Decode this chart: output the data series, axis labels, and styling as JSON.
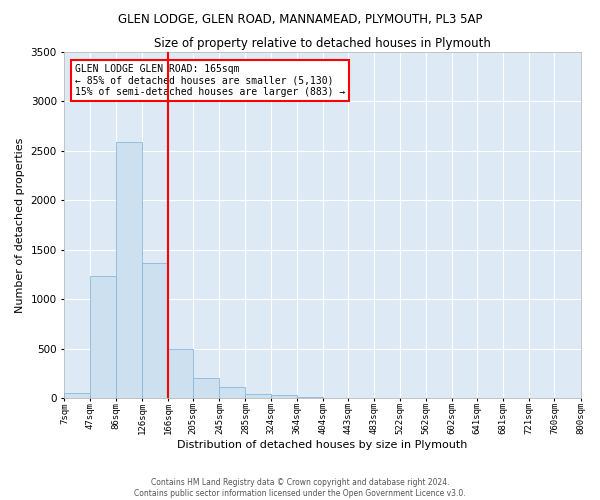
{
  "title": "GLEN LODGE, GLEN ROAD, MANNAMEAD, PLYMOUTH, PL3 5AP",
  "subtitle": "Size of property relative to detached houses in Plymouth",
  "xlabel": "Distribution of detached houses by size in Plymouth",
  "ylabel": "Number of detached properties",
  "bar_color": "#cce0f0",
  "bar_edge_color": "#8ab8d8",
  "background_color": "#ddeaf6",
  "grid_color": "#ffffff",
  "red_line_x": 166,
  "annotation_title": "GLEN LODGE GLEN ROAD: 165sqm",
  "annotation_line1": "← 85% of detached houses are smaller (5,130)",
  "annotation_line2": "15% of semi-detached houses are larger (883) →",
  "bin_edges": [
    7,
    47,
    86,
    126,
    166,
    205,
    245,
    285,
    324,
    364,
    404,
    443,
    483,
    522,
    562,
    602,
    641,
    681,
    721,
    760,
    800
  ],
  "bin_labels": [
    "7sqm",
    "47sqm",
    "86sqm",
    "126sqm",
    "166sqm",
    "205sqm",
    "245sqm",
    "285sqm",
    "324sqm",
    "364sqm",
    "404sqm",
    "443sqm",
    "483sqm",
    "522sqm",
    "562sqm",
    "602sqm",
    "641sqm",
    "681sqm",
    "721sqm",
    "760sqm",
    "800sqm"
  ],
  "bar_heights": [
    50,
    1230,
    2590,
    1360,
    500,
    200,
    110,
    40,
    30,
    10,
    5,
    5,
    5,
    5,
    5,
    5,
    5,
    5,
    5,
    5
  ],
  "ylim": [
    0,
    3500
  ],
  "yticks": [
    0,
    500,
    1000,
    1500,
    2000,
    2500,
    3000,
    3500
  ],
  "footnote1": "Contains HM Land Registry data © Crown copyright and database right 2024.",
  "footnote2": "Contains public sector information licensed under the Open Government Licence v3.0."
}
